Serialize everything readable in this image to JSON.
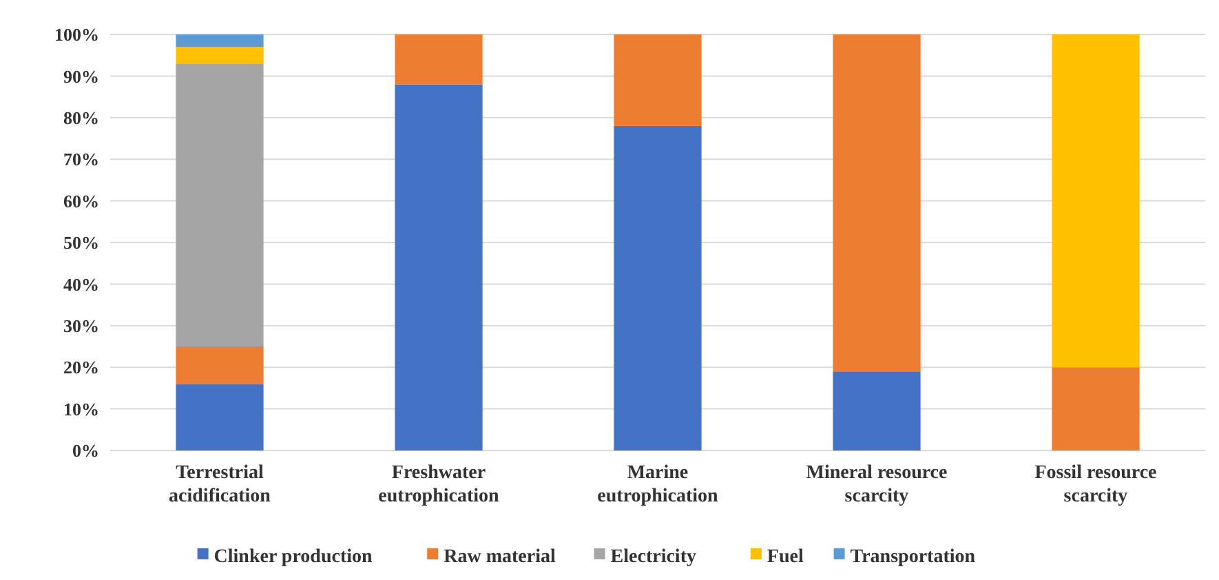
{
  "chart_data": {
    "type": "bar",
    "stacked": true,
    "categories": [
      "Terrestrial acidification",
      "Freshwater eutrophication",
      "Marine eutrophication",
      "Mineral resource scarcity",
      "Fossil resource scarcity"
    ],
    "series": [
      {
        "name": "Clinker production",
        "color": "#4472c4",
        "values": [
          16,
          88,
          78,
          19,
          0
        ]
      },
      {
        "name": "Raw material",
        "color": "#ed7d31",
        "values": [
          9,
          12,
          22,
          81,
          20
        ]
      },
      {
        "name": "Electricity",
        "color": "#a5a5a5",
        "values": [
          68,
          0,
          0,
          0,
          0
        ]
      },
      {
        "name": "Fuel",
        "color": "#ffc000",
        "values": [
          4,
          0,
          0,
          0,
          80
        ]
      },
      {
        "name": "Transportation",
        "color": "#5b9bd5",
        "values": [
          3,
          0,
          0,
          0,
          0
        ]
      }
    ],
    "ylim": [
      0,
      100
    ],
    "yticks": [
      {
        "value": 0,
        "label": "0%"
      },
      {
        "value": 10,
        "label": "10%"
      },
      {
        "value": 20,
        "label": "20%"
      },
      {
        "value": 30,
        "label": "30%"
      },
      {
        "value": 40,
        "label": "40%"
      },
      {
        "value": 50,
        "label": "50%"
      },
      {
        "value": 60,
        "label": "60%"
      },
      {
        "value": 70,
        "label": "70%"
      },
      {
        "value": 80,
        "label": "80%"
      },
      {
        "value": 90,
        "label": "90%"
      },
      {
        "value": 100,
        "label": "100%"
      }
    ],
    "grid": "y",
    "legend": "bottom"
  }
}
